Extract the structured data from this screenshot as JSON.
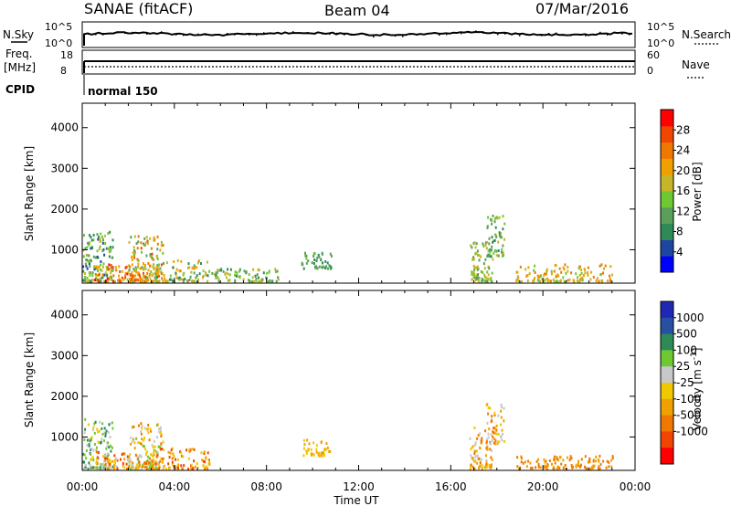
{
  "header": {
    "station": "SANAE (fitACF)",
    "beam": "Beam 04",
    "date": "07/Mar/2016"
  },
  "top_panels": {
    "nsky_label": "N.Sky",
    "nsky_ticks": [
      "10^5",
      "10^0"
    ],
    "nsearch_label": "N.Search",
    "nsearch_ticks": [
      "10^5",
      "10^0"
    ],
    "freq_label": "Freq.",
    "freq_unit": "[MHz]",
    "freq_ticks": [
      "18",
      "8"
    ],
    "nave_label": "Nave",
    "nave_ticks": [
      "60",
      "0"
    ],
    "cpid_label": "CPID",
    "cpid_value": "normal 150"
  },
  "colors": {
    "power": [
      "#0000ff",
      "#1e46a0",
      "#2e8b57",
      "#5aa05a",
      "#6ec832",
      "#c8b428",
      "#f0a000",
      "#f07800",
      "#f04600",
      "#ff0000"
    ],
    "velocity": [
      "#1e28b4",
      "#2850a0",
      "#2e8b57",
      "#6ec832",
      "#c8c8c8",
      "#f0c800",
      "#f0a000",
      "#f07800",
      "#f04600",
      "#ff0000"
    ]
  },
  "chart_data": [
    {
      "type": "heatmap",
      "name": "power",
      "ylabel": "Slant Range [km]",
      "yticks": [
        "4000",
        "3000",
        "2000",
        "1000"
      ],
      "ylim": [
        180,
        4600
      ],
      "xlim": [
        0,
        24
      ],
      "colorbar_label": "Power [dB]",
      "colorbar_ticks": [
        "28",
        "24",
        "20",
        "16",
        "12",
        "8",
        "4"
      ],
      "colorbar_range": [
        0,
        32
      ],
      "regions": [
        {
          "t": [
            0.0,
            1.3
          ],
          "r": [
            180,
            1400
          ],
          "v": [
            6,
            18
          ]
        },
        {
          "t": [
            0.5,
            3.0
          ],
          "r": [
            180,
            600
          ],
          "v": [
            16,
            30
          ]
        },
        {
          "t": [
            2.0,
            3.5
          ],
          "r": [
            180,
            1300
          ],
          "v": [
            10,
            28
          ]
        },
        {
          "t": [
            3.0,
            5.5
          ],
          "r": [
            180,
            700
          ],
          "v": [
            8,
            24
          ]
        },
        {
          "t": [
            5.5,
            8.5
          ],
          "r": [
            180,
            500
          ],
          "v": [
            8,
            18
          ]
        },
        {
          "t": [
            9.5,
            10.8
          ],
          "r": [
            500,
            900
          ],
          "v": [
            8,
            14
          ]
        },
        {
          "t": [
            16.8,
            17.8
          ],
          "r": [
            180,
            1200
          ],
          "v": [
            10,
            20
          ]
        },
        {
          "t": [
            17.5,
            18.3
          ],
          "r": [
            800,
            1800
          ],
          "v": [
            8,
            18
          ]
        },
        {
          "t": [
            18.8,
            23.0
          ],
          "r": [
            180,
            600
          ],
          "v": [
            14,
            26
          ]
        }
      ]
    },
    {
      "type": "heatmap",
      "name": "velocity",
      "ylabel": "Slant Range [km]",
      "yticks": [
        "4000",
        "3000",
        "2000",
        "1000"
      ],
      "ylim": [
        180,
        4600
      ],
      "xlim": [
        0,
        24
      ],
      "xticks": [
        "00:00",
        "04:00",
        "08:00",
        "12:00",
        "16:00",
        "20:00",
        "00:00"
      ],
      "xlabel": "Time UT",
      "colorbar_label": "Velocity [m s^-1]",
      "colorbar_ticks": [
        "1000",
        "500",
        "100",
        "25",
        "-25",
        "-100",
        "-500",
        "-1000"
      ],
      "regions": [
        {
          "t": [
            0.0,
            1.3
          ],
          "r": [
            180,
            1400
          ],
          "v": [
            2,
            6
          ]
        },
        {
          "t": [
            0.5,
            3.0
          ],
          "r": [
            180,
            600
          ],
          "v": [
            4,
            9
          ]
        },
        {
          "t": [
            2.0,
            3.5
          ],
          "r": [
            180,
            1300
          ],
          "v": [
            3,
            8
          ]
        },
        {
          "t": [
            3.0,
            5.5
          ],
          "r": [
            180,
            700
          ],
          "v": [
            5,
            9
          ]
        },
        {
          "t": [
            9.5,
            10.8
          ],
          "r": [
            500,
            900
          ],
          "v": [
            5,
            7
          ]
        },
        {
          "t": [
            16.8,
            17.8
          ],
          "r": [
            180,
            1200
          ],
          "v": [
            4,
            8
          ]
        },
        {
          "t": [
            17.5,
            18.3
          ],
          "r": [
            800,
            1800
          ],
          "v": [
            4,
            8
          ]
        },
        {
          "t": [
            18.8,
            23.0
          ],
          "r": [
            180,
            500
          ],
          "v": [
            6,
            8
          ]
        }
      ]
    }
  ]
}
